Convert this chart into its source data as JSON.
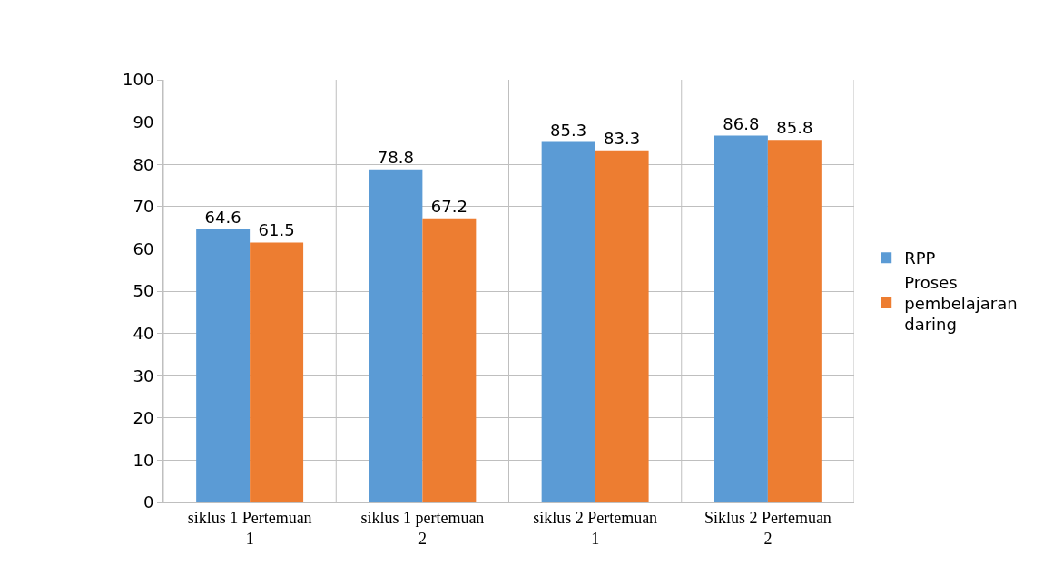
{
  "chart_data": {
    "type": "bar",
    "categories": [
      "siklus 1 Pertemuan 1",
      "siklus 1 pertemuan 2",
      "siklus 2 Pertemuan 1",
      "Siklus 2 Pertemuan 2"
    ],
    "series": [
      {
        "name": "RPP",
        "color": "#5b9bd5",
        "values": [
          64.6,
          78.8,
          85.3,
          86.8
        ]
      },
      {
        "name": "Proses pembelajaran daring",
        "color": "#ed7d31",
        "values": [
          61.5,
          67.2,
          83.3,
          85.8
        ]
      }
    ],
    "ylim": [
      0,
      100
    ],
    "yticks": [
      0,
      10,
      20,
      30,
      40,
      50,
      60,
      70,
      80,
      90,
      100
    ],
    "grid": true,
    "legend": "right",
    "data_labels": true
  }
}
